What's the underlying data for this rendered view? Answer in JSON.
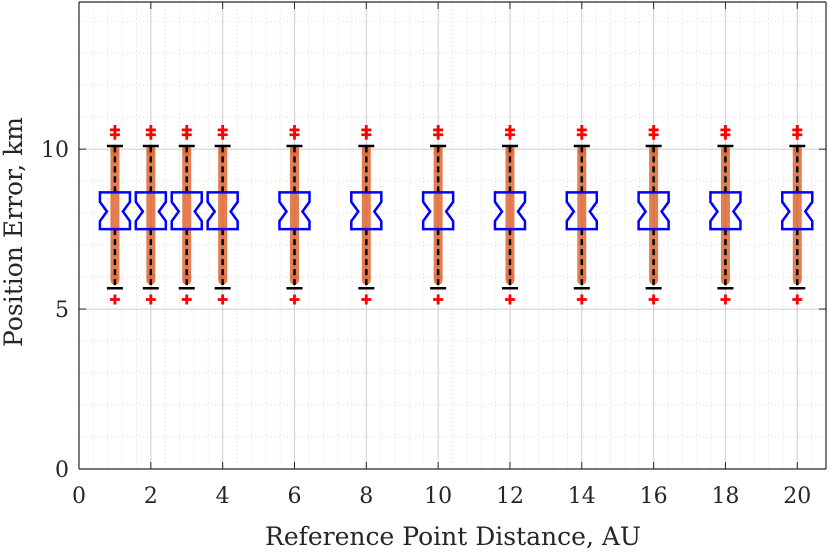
{
  "chart_data": {
    "type": "boxplot",
    "title": "",
    "xlabel": "Reference Point Distance, AU",
    "ylabel": "Position Error, km",
    "xlim": [
      0,
      20.8
    ],
    "ylim": [
      0,
      14.6
    ],
    "xticks": [
      0,
      2,
      4,
      6,
      8,
      10,
      12,
      14,
      16,
      18,
      20
    ],
    "yticks": [
      0,
      5,
      10
    ],
    "grid": true,
    "minor_grid": true,
    "notched": true,
    "x": [
      1,
      2,
      3,
      4,
      6,
      8,
      10,
      12,
      14,
      16,
      18,
      20
    ],
    "median": [
      8.05,
      8.05,
      8.05,
      8.05,
      8.05,
      8.05,
      8.05,
      8.05,
      8.05,
      8.05,
      8.05,
      8.05
    ],
    "q1": [
      7.5,
      7.5,
      7.5,
      7.5,
      7.5,
      7.5,
      7.5,
      7.5,
      7.5,
      7.5,
      7.5,
      7.5
    ],
    "q3": [
      8.65,
      8.65,
      8.65,
      8.65,
      8.65,
      8.65,
      8.65,
      8.65,
      8.65,
      8.65,
      8.65,
      8.65
    ],
    "whisker_low": [
      5.65,
      5.65,
      5.65,
      5.65,
      5.65,
      5.65,
      5.65,
      5.65,
      5.65,
      5.65,
      5.65,
      5.65
    ],
    "whisker_high": [
      10.1,
      10.1,
      10.1,
      10.1,
      10.1,
      10.1,
      10.1,
      10.1,
      10.1,
      10.1,
      10.1,
      10.1
    ],
    "outliers_low": [
      5.3,
      5.3,
      5.3,
      5.3,
      5.3,
      5.3,
      5.3,
      5.3,
      5.3,
      5.3,
      5.3,
      5.3
    ],
    "outliers_high": [
      [
        10.6,
        10.45
      ],
      [
        10.6,
        10.45
      ],
      [
        10.6,
        10.45
      ],
      [
        10.6,
        10.45
      ],
      [
        10.6,
        10.45
      ],
      [
        10.6,
        10.45
      ],
      [
        10.6,
        10.45
      ],
      [
        10.6,
        10.45
      ],
      [
        10.6,
        10.45
      ],
      [
        10.6,
        10.45
      ],
      [
        10.6,
        10.45
      ],
      [
        10.6,
        10.45
      ]
    ],
    "colors": {
      "box": "#0000ff",
      "whisker": "#000000",
      "outlier": "#ff0000",
      "samples": "#d95319",
      "grid": "#d9d9d9",
      "axis": "#262626"
    }
  }
}
